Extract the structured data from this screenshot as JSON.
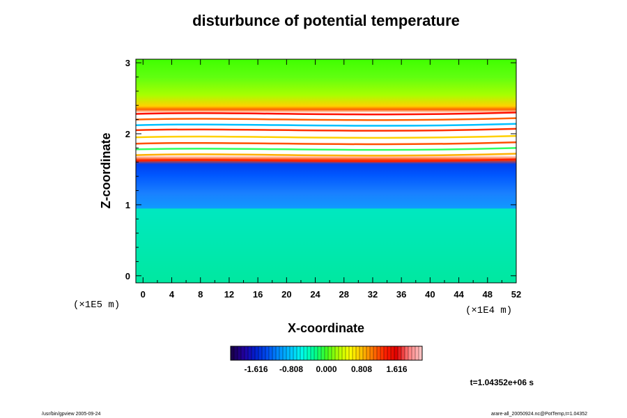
{
  "chart_data": {
    "type": "heatmap",
    "title": "disturbunce of potential temperature",
    "xlabel": "X-coordinate",
    "ylabel": "Z-coordinate",
    "x_unit": "(×1E4 m)",
    "y_unit": "(×1E5 m)",
    "x_ticks": [
      "0",
      "4",
      "8",
      "12",
      "16",
      "20",
      "24",
      "28",
      "32",
      "36",
      "40",
      "44",
      "48",
      "52"
    ],
    "y_ticks": [
      "0",
      "1",
      "2",
      "3"
    ],
    "xlim": [
      -1,
      52
    ],
    "ylim": [
      -0.1,
      3.05
    ],
    "colorbar": {
      "vmin": -2.2,
      "vmax": 2.2,
      "ticks": [
        "-1.616",
        "-0.808",
        "0.000",
        "0.808",
        "1.616"
      ],
      "tick_values": [
        -1.616,
        -0.808,
        0.0,
        0.808,
        1.616
      ],
      "colors": [
        "#1a0050",
        "#2200a0",
        "#0020d0",
        "#0050f0",
        "#0090ff",
        "#00c8ff",
        "#00ffe8",
        "#00ff90",
        "#40ff20",
        "#b0ff00",
        "#ffff00",
        "#ffc000",
        "#ff7000",
        "#ff2000",
        "#e00000",
        "#ff8080",
        "#ffc0c0"
      ]
    },
    "layers": [
      {
        "z_range": [
          -0.1,
          0.95
        ],
        "value": 0.35,
        "description_color": "#10f0a0"
      },
      {
        "z_range": [
          0.95,
          1.6
        ],
        "value": -1.3,
        "description_color": "#1a70ff"
      },
      {
        "z_range": [
          1.6,
          2.3
        ],
        "value": 2.3,
        "description_color": "#ffffff"
      },
      {
        "z_range": [
          2.3,
          3.05
        ],
        "value": 0.9,
        "description_color": "#80ff40"
      }
    ],
    "time_label": "t=1.04352e+06 s"
  },
  "footer": {
    "left": "/usr/bin/gpview 2005-09-24",
    "right": "arare-all_20050924.nc@PotTemp,t=1.04352"
  }
}
